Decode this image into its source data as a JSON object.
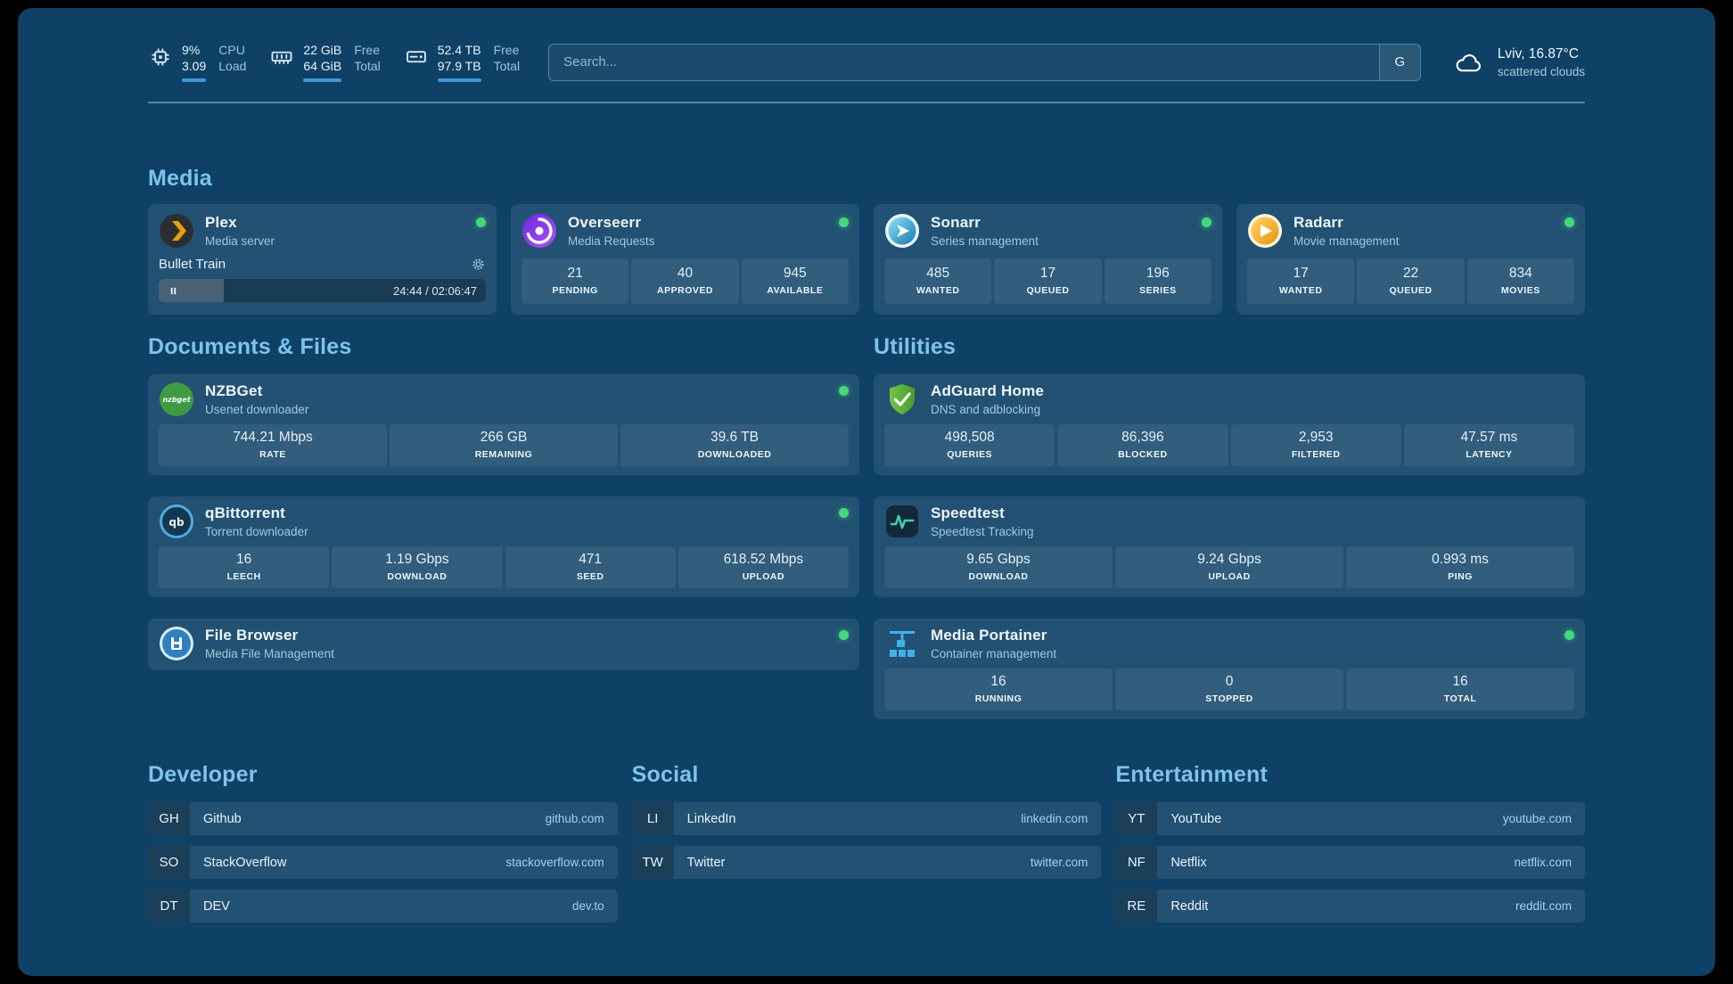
{
  "topbar": {
    "widgets": [
      {
        "icon": "cpu-icon",
        "values": [
          "9%",
          "3.09"
        ],
        "labels": [
          "CPU",
          "Load"
        ],
        "progress": 100
      },
      {
        "icon": "memory-icon",
        "values": [
          "22 GiB",
          "64 GiB"
        ],
        "labels": [
          "Free",
          "Total"
        ],
        "progress": 100
      },
      {
        "icon": "disk-icon",
        "values": [
          "52.4 TB",
          "97.9 TB"
        ],
        "labels": [
          "Free",
          "Total"
        ],
        "progress": 100
      }
    ],
    "search": {
      "placeholder": "Search...",
      "button_label": "G"
    },
    "weather": {
      "location": "Lviv, 16.87°C",
      "condition": "scattered clouds"
    }
  },
  "media": {
    "title": "Media",
    "cards": [
      {
        "icon": "plex",
        "name": "Plex",
        "desc": "Media server",
        "online": true,
        "player": {
          "title": "Bullet Train",
          "time": "24:44 / 02:06:47",
          "progress": 20
        }
      },
      {
        "icon": "overseerr",
        "name": "Overseerr",
        "desc": "Media Requests",
        "online": true,
        "stats": [
          {
            "value": "21",
            "label": "PENDING"
          },
          {
            "value": "40",
            "label": "APPROVED"
          },
          {
            "value": "945",
            "label": "AVAILABLE"
          }
        ]
      },
      {
        "icon": "sonarr",
        "name": "Sonarr",
        "desc": "Series management",
        "online": true,
        "stats": [
          {
            "value": "485",
            "label": "WANTED"
          },
          {
            "value": "17",
            "label": "QUEUED"
          },
          {
            "value": "196",
            "label": "SERIES"
          }
        ]
      },
      {
        "icon": "radarr",
        "name": "Radarr",
        "desc": "Movie management",
        "online": true,
        "stats": [
          {
            "value": "17",
            "label": "WANTED"
          },
          {
            "value": "22",
            "label": "QUEUED"
          },
          {
            "value": "834",
            "label": "MOVIES"
          }
        ]
      }
    ]
  },
  "columns": [
    {
      "title": "Documents & Files",
      "cards": [
        {
          "icon": "nzbget",
          "name": "NZBGet",
          "desc": "Usenet downloader",
          "online": true,
          "stats": [
            {
              "value": "744.21 Mbps",
              "label": "RATE"
            },
            {
              "value": "266 GB",
              "label": "REMAINING"
            },
            {
              "value": "39.6 TB",
              "label": "DOWNLOADED"
            }
          ]
        },
        {
          "icon": "qbittorrent",
          "name": "qBittorrent",
          "desc": "Torrent downloader",
          "online": true,
          "stats": [
            {
              "value": "16",
              "label": "LEECH"
            },
            {
              "value": "1.19 Gbps",
              "label": "DOWNLOAD"
            },
            {
              "value": "471",
              "label": "SEED"
            },
            {
              "value": "618.52 Mbps",
              "label": "UPLOAD"
            }
          ]
        },
        {
          "icon": "filebrowser",
          "name": "File Browser",
          "desc": "Media File Management",
          "online": true
        }
      ]
    },
    {
      "title": "Utilities",
      "cards": [
        {
          "icon": "adguard",
          "name": "AdGuard Home",
          "desc": "DNS and adblocking",
          "online": false,
          "stats": [
            {
              "value": "498,508",
              "label": "QUERIES"
            },
            {
              "value": "86,396",
              "label": "BLOCKED"
            },
            {
              "value": "2,953",
              "label": "FILTERED"
            },
            {
              "value": "47.57 ms",
              "label": "LATENCY"
            }
          ]
        },
        {
          "icon": "speedtest",
          "name": "Speedtest",
          "desc": "Speedtest Tracking",
          "online": false,
          "stats": [
            {
              "value": "9.65 Gbps",
              "label": "DOWNLOAD"
            },
            {
              "value": "9.24 Gbps",
              "label": "UPLOAD"
            },
            {
              "value": "0.993 ms",
              "label": "PING"
            }
          ]
        },
        {
          "icon": "portainer",
          "name": "Media Portainer",
          "desc": "Container management",
          "online": true,
          "stats": [
            {
              "value": "16",
              "label": "RUNNING"
            },
            {
              "value": "0",
              "label": "STOPPED"
            },
            {
              "value": "16",
              "label": "TOTAL"
            }
          ]
        }
      ]
    }
  ],
  "bookmark_groups": [
    {
      "title": "Developer",
      "items": [
        {
          "abbr": "GH",
          "name": "Github",
          "url": "github.com"
        },
        {
          "abbr": "SO",
          "name": "StackOverflow",
          "url": "stackoverflow.com"
        },
        {
          "abbr": "DT",
          "name": "DEV",
          "url": "dev.to"
        }
      ]
    },
    {
      "title": "Social",
      "items": [
        {
          "abbr": "LI",
          "name": "LinkedIn",
          "url": "linkedin.com"
        },
        {
          "abbr": "TW",
          "name": "Twitter",
          "url": "twitter.com"
        }
      ]
    },
    {
      "title": "Entertainment",
      "items": [
        {
          "abbr": "YT",
          "name": "YouTube",
          "url": "youtube.com"
        },
        {
          "abbr": "NF",
          "name": "Netflix",
          "url": "netflix.com"
        },
        {
          "abbr": "RE",
          "name": "Reddit",
          "url": "reddit.com"
        }
      ]
    }
  ]
}
